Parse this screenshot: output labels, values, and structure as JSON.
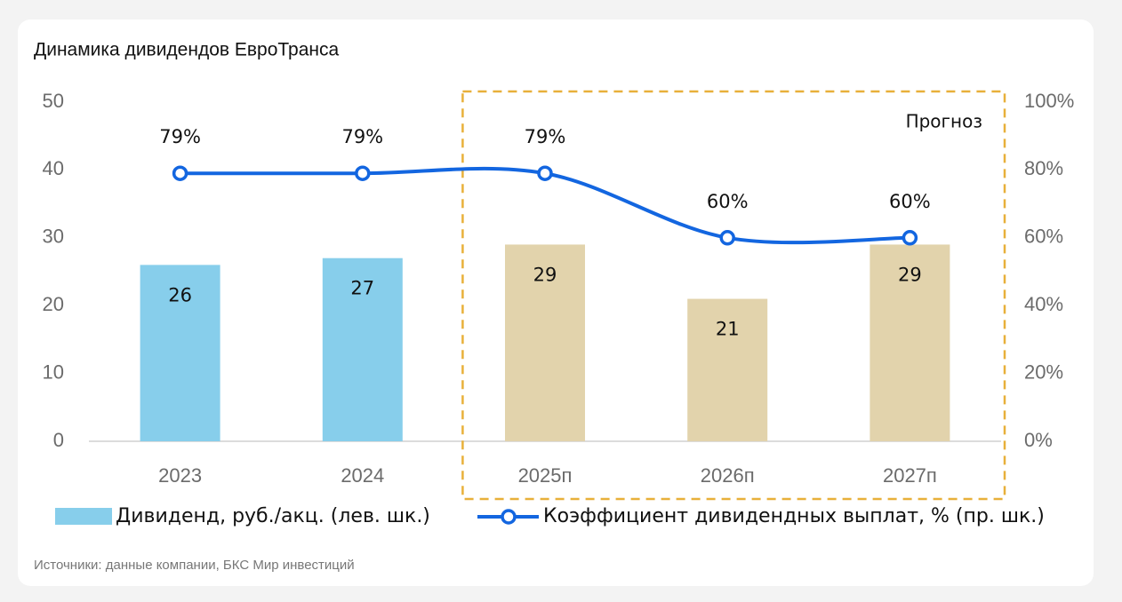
{
  "chart_data": {
    "type": "bar",
    "title": "Динамика дивидендов ЕвроТранса",
    "categories": [
      "2023",
      "2024",
      "2025п",
      "2026п",
      "2027п"
    ],
    "series": [
      {
        "name": "Дивиденд, руб./акц. (лев. шк.)",
        "type": "bar",
        "colors": [
          "#87ceeb",
          "#87ceeb",
          "#e2d3ac",
          "#e2d3ac",
          "#e2d3ac"
        ],
        "values": [
          26,
          27,
          29,
          21,
          29
        ]
      },
      {
        "name": "Коэффициент дивидендных выплат, % (пр. шк.)",
        "type": "line",
        "axis": "y2",
        "color": "#1366e0",
        "values": [
          79,
          79,
          79,
          60,
          60
        ],
        "value_labels": [
          "79%",
          "79%",
          "79%",
          "60%",
          "60%"
        ]
      }
    ],
    "ylim": [
      0,
      50
    ],
    "yticks": [
      0,
      10,
      20,
      30,
      40,
      50
    ],
    "y2lim": [
      0,
      100
    ],
    "y2ticks": [
      {
        "value": 0,
        "label": "0%"
      },
      {
        "value": 20,
        "label": "20%"
      },
      {
        "value": 40,
        "label": "40%"
      },
      {
        "value": 60,
        "label": "60%"
      },
      {
        "value": 80,
        "label": "80%"
      },
      {
        "value": 100,
        "label": "100%"
      }
    ],
    "annotations": [
      "Прогноз"
    ],
    "forecast_box_color": "#e8b03a",
    "source": "Источники: данные компании, БКС Мир инвестиций"
  }
}
